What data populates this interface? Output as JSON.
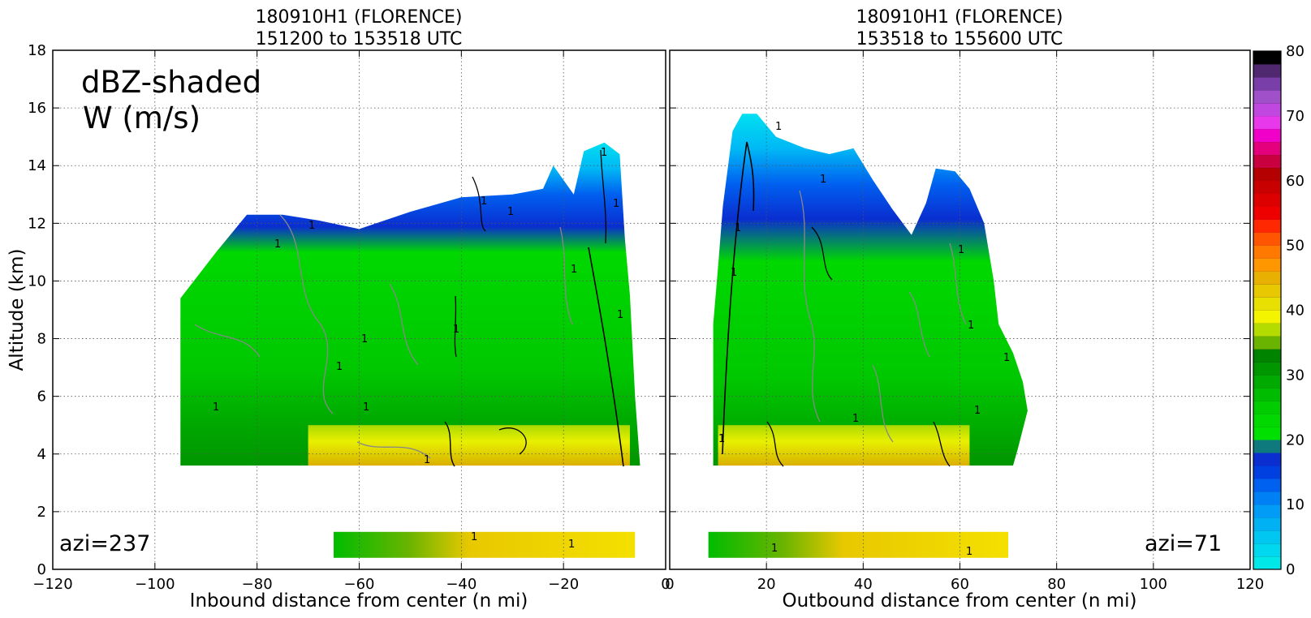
{
  "chart_data": [
    {
      "type": "heatmap",
      "title_line1": "180910H1 (FLORENCE)",
      "title_line2": "151200 to 153518 UTC",
      "xlabel": "Inbound distance from center (n mi)",
      "ylabel": "Altitude (km)",
      "xlim": [
        -120,
        0
      ],
      "ylim": [
        0,
        18
      ],
      "x_ticks": [
        -120,
        -100,
        -80,
        -60,
        -40,
        -20,
        0
      ],
      "y_ticks": [
        0,
        2,
        4,
        6,
        8,
        10,
        12,
        14,
        16,
        18
      ],
      "grid": true,
      "annotation_title": [
        "dBZ-shaded",
        "W (m/s)"
      ],
      "annotation_azi": "azi=237",
      "contour_label": "1",
      "top_profile": [
        [
          -95,
          9.4
        ],
        [
          -88,
          11
        ],
        [
          -82,
          12.3
        ],
        [
          -75,
          12.3
        ],
        [
          -68,
          12.1
        ],
        [
          -60,
          11.8
        ],
        [
          -50,
          12.4
        ],
        [
          -40,
          12.9
        ],
        [
          -30,
          13.0
        ],
        [
          -24,
          13.2
        ],
        [
          -22,
          14.0
        ],
        [
          -18,
          13.0
        ],
        [
          -16,
          14.5
        ],
        [
          -12,
          14.8
        ],
        [
          -9,
          14.4
        ],
        [
          -8,
          11.5
        ],
        [
          -7,
          9.5
        ],
        [
          -6,
          6
        ],
        [
          -5,
          3.6
        ]
      ],
      "melting_layer": [
        -70,
        -7
      ],
      "low_band": {
        "x_range": [
          -65,
          -6
        ],
        "alt_range": [
          0.4,
          1.3
        ],
        "sparse_from": -75
      }
    },
    {
      "type": "heatmap",
      "title_line1": "180910H1 (FLORENCE)",
      "title_line2": "153518 to 155600 UTC",
      "xlabel": "Outbound distance from center (n mi)",
      "xlim": [
        0,
        120
      ],
      "ylim": [
        0,
        18
      ],
      "x_ticks": [
        0,
        20,
        40,
        60,
        80,
        100,
        120
      ],
      "grid": true,
      "annotation_azi": "azi=71",
      "contour_label": "1",
      "top_profile": [
        [
          9,
          8.5
        ],
        [
          10,
          10.5
        ],
        [
          11,
          12.6
        ],
        [
          13,
          15.2
        ],
        [
          15,
          15.8
        ],
        [
          18,
          15.8
        ],
        [
          22,
          15.0
        ],
        [
          28,
          14.6
        ],
        [
          33,
          14.4
        ],
        [
          38,
          14.6
        ],
        [
          42,
          13.5
        ],
        [
          46,
          12.5
        ],
        [
          50,
          11.6
        ],
        [
          53,
          12.7
        ],
        [
          55,
          13.9
        ],
        [
          59,
          13.8
        ],
        [
          62,
          13.2
        ],
        [
          65,
          12.0
        ],
        [
          67,
          10.0
        ],
        [
          68,
          8.5
        ],
        [
          71,
          7.5
        ],
        [
          73,
          6.5
        ],
        [
          74,
          5.5
        ],
        [
          72,
          4.2
        ],
        [
          71,
          3.6
        ]
      ],
      "melting_layer": [
        10,
        62
      ],
      "low_band": {
        "x_range": [
          8,
          70
        ],
        "alt_range": [
          0.4,
          1.3
        ]
      }
    }
  ],
  "colorbar": {
    "ticks": [
      0,
      10,
      20,
      30,
      40,
      50,
      60,
      70,
      80
    ],
    "colors": [
      "#00e8e8",
      "#00d8ef",
      "#00c6f2",
      "#00b2f4",
      "#009cf5",
      "#0080f5",
      "#0060f0",
      "#0040e0",
      "#0a2ed0",
      "#0e7a7e",
      "#00e000",
      "#00d800",
      "#00cc00",
      "#00bc00",
      "#00aa00",
      "#009600",
      "#008400",
      "#6ab400",
      "#b4dc00",
      "#f4f400",
      "#e8e000",
      "#e8c800",
      "#e8b000",
      "#ff9800",
      "#ff7800",
      "#ff5400",
      "#ff2800",
      "#ee0000",
      "#dc0000",
      "#c80000",
      "#b40000",
      "#c80040",
      "#e4007c",
      "#f000c8",
      "#e838ec",
      "#c048e0",
      "#a050c8",
      "#7a3ea8",
      "#502870",
      "#000000"
    ]
  }
}
